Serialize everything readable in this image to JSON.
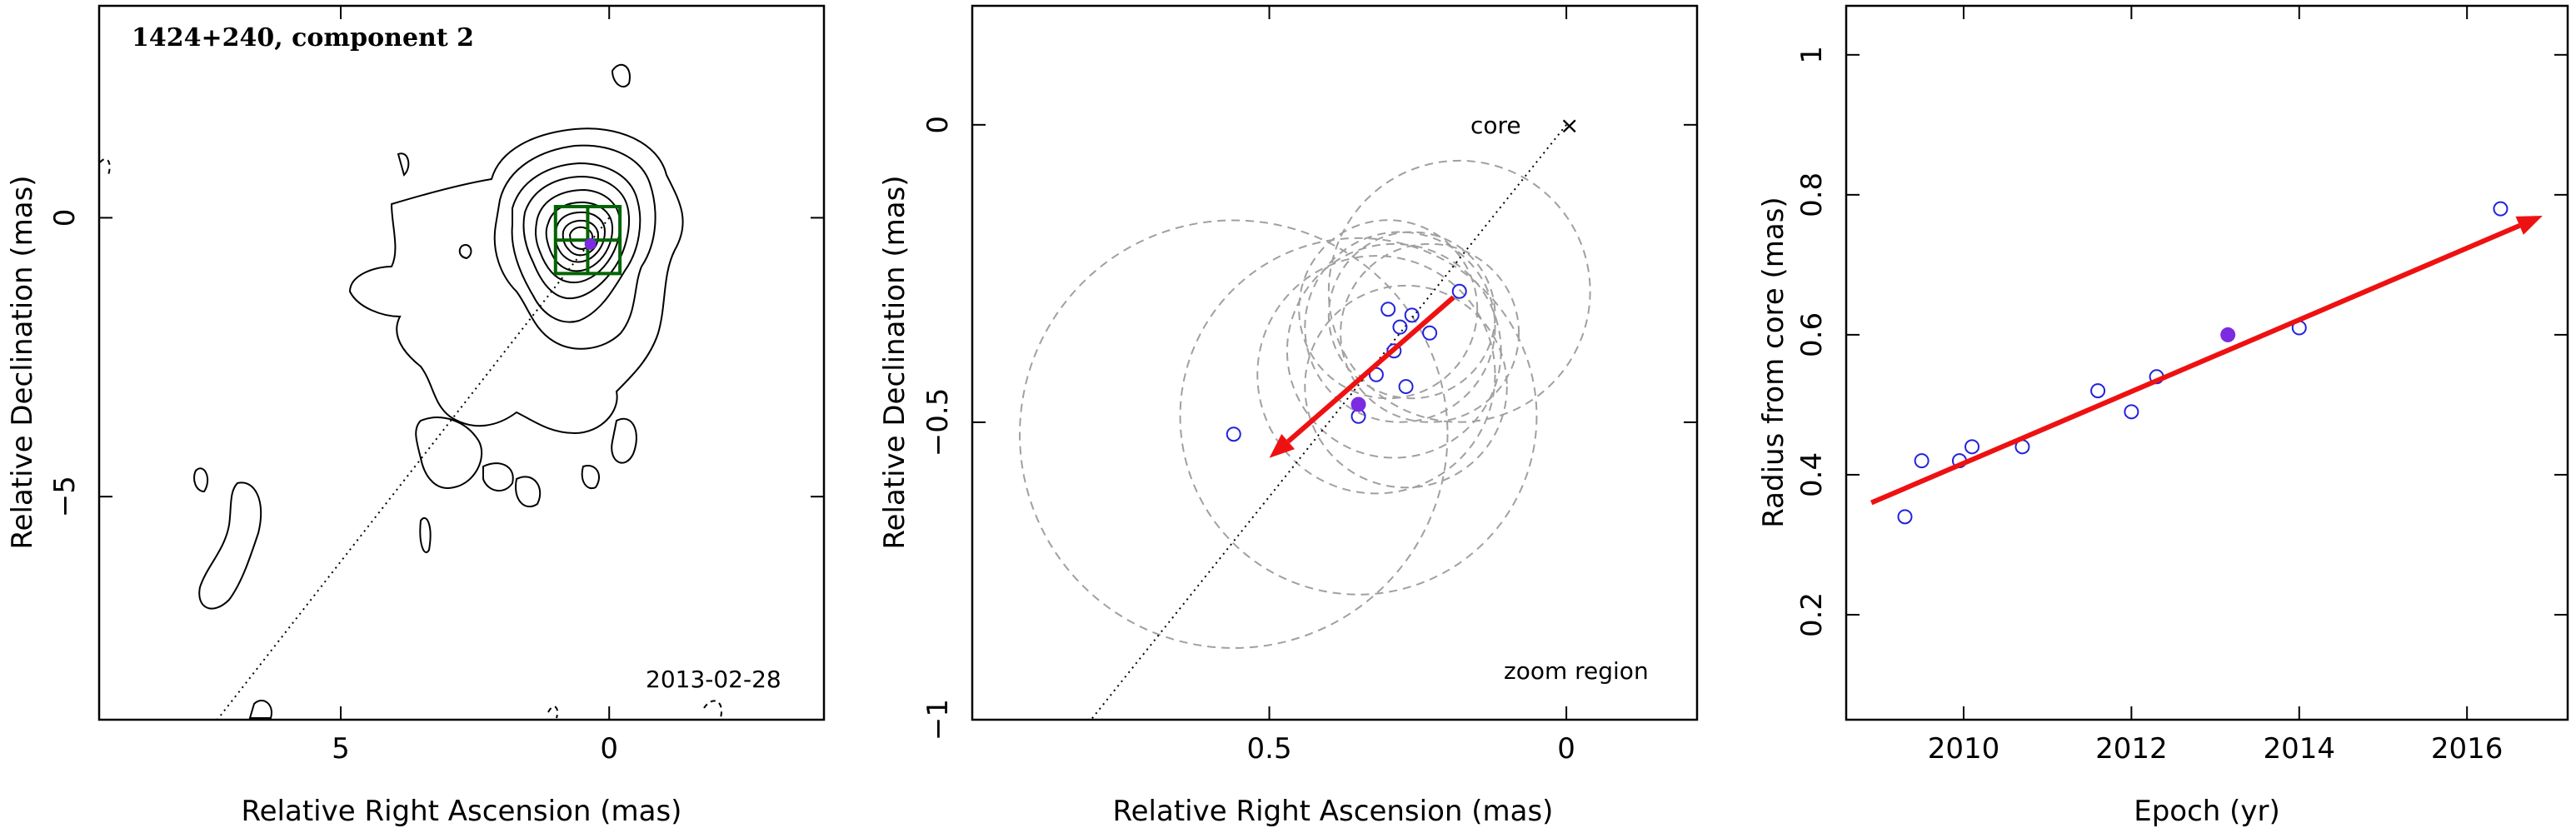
{
  "chart_data": [
    {
      "type": "contour",
      "title": "1424+240, component 2",
      "annotation": "2013-02-28",
      "xlabel": "Relative Right Ascension (mas)",
      "ylabel": "Relative Declination (mas)",
      "xlim": [
        9.5,
        -4
      ],
      "ylim": [
        -9,
        3.8
      ],
      "xticks": [
        5,
        0
      ],
      "yticks": [
        0,
        -5
      ],
      "zoom_box": {
        "x": [
          1,
          -0.2
        ],
        "y": [
          -1,
          0.2
        ],
        "color": "#006400"
      },
      "component_marker": {
        "x": 0.35,
        "y": -0.47,
        "color": "#7b2be0"
      },
      "jet_direction_line": {
        "from": [
          0,
          0
        ],
        "to": [
          7.3,
          -9
        ],
        "style": "dotted"
      }
    },
    {
      "type": "scatter",
      "xlabel": "Relative Right Ascension (mas)",
      "ylabel": "Relative Declination (mas)",
      "xlim": [
        1,
        -0.22
      ],
      "ylim": [
        -1,
        0.2
      ],
      "xticks": [
        0.5,
        0
      ],
      "yticks": [
        0,
        -0.5,
        -1
      ],
      "core_label": "core",
      "zoom_label": "zoom region",
      "points": [
        {
          "x": 0.56,
          "y": -0.52,
          "r": 0.36
        },
        {
          "x": 0.35,
          "y": -0.49,
          "r": 0.3
        },
        {
          "x": 0.32,
          "y": -0.42,
          "r": 0.2
        },
        {
          "x": 0.29,
          "y": -0.38,
          "r": 0.18
        },
        {
          "x": 0.3,
          "y": -0.31,
          "r": 0.15
        },
        {
          "x": 0.28,
          "y": -0.34,
          "r": 0.16
        },
        {
          "x": 0.26,
          "y": -0.32,
          "r": 0.14
        },
        {
          "x": 0.23,
          "y": -0.35,
          "r": 0.15
        },
        {
          "x": 0.27,
          "y": -0.44,
          "r": 0.17
        },
        {
          "x": 0.18,
          "y": -0.28,
          "r": 0.22
        }
      ],
      "highlight_point": {
        "x": 0.35,
        "y": -0.47,
        "color": "#7b2be0"
      },
      "arrow": {
        "from": [
          0.19,
          -0.29
        ],
        "to": [
          0.5,
          -0.56
        ],
        "color": "#ee1111"
      },
      "jet_direction_line": {
        "from": [
          0,
          0
        ],
        "to": [
          0.8,
          -1
        ],
        "style": "dotted"
      }
    },
    {
      "type": "scatter",
      "xlabel": "Epoch (yr)",
      "ylabel": "Radius from core (mas)",
      "xlim": [
        2008.6,
        2017.2
      ],
      "ylim": [
        0.05,
        1.07
      ],
      "xticks": [
        2010,
        2012,
        2014,
        2016
      ],
      "yticks": [
        0.2,
        0.4,
        0.6,
        0.8,
        1
      ],
      "points": [
        {
          "x": 2009.3,
          "y": 0.34
        },
        {
          "x": 2009.5,
          "y": 0.42
        },
        {
          "x": 2009.95,
          "y": 0.42
        },
        {
          "x": 2010.1,
          "y": 0.44
        },
        {
          "x": 2010.7,
          "y": 0.44
        },
        {
          "x": 2011.6,
          "y": 0.52
        },
        {
          "x": 2012.0,
          "y": 0.49
        },
        {
          "x": 2012.3,
          "y": 0.54
        },
        {
          "x": 2014.0,
          "y": 0.61
        },
        {
          "x": 2016.4,
          "y": 0.78
        }
      ],
      "highlight_point": {
        "x": 2013.15,
        "y": 0.6,
        "color": "#7b2be0"
      },
      "fit_arrow": {
        "from": [
          2008.9,
          0.36
        ],
        "to": [
          2016.9,
          0.77
        ],
        "color": "#ee1111"
      }
    }
  ]
}
